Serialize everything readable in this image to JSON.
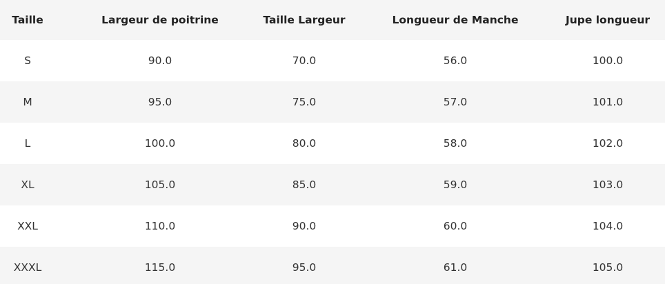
{
  "table": {
    "header": [
      "Taille",
      "Largeur de poitrine",
      "Taille Largeur",
      "Longueur de Manche",
      "Jupe longueur"
    ],
    "rows": [
      [
        "S",
        "90.0",
        "70.0",
        "56.0",
        "100.0"
      ],
      [
        "M",
        "95.0",
        "75.0",
        "57.0",
        "101.0"
      ],
      [
        "L",
        "100.0",
        "80.0",
        "58.0",
        "102.0"
      ],
      [
        "XL",
        "105.0",
        "85.0",
        "59.0",
        "103.0"
      ],
      [
        "XXL",
        "110.0",
        "90.0",
        "60.0",
        "104.0"
      ],
      [
        "XXXL",
        "115.0",
        "95.0",
        "61.0",
        "105.0"
      ]
    ]
  }
}
